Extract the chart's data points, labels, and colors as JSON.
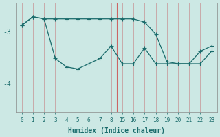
{
  "xlabel": "Humidex (Indice chaleur)",
  "bg_color": "#cce8e4",
  "line_color": "#1a6b6b",
  "grid_color": "#c8a0a0",
  "ylim": [
    -4.55,
    -2.45
  ],
  "yticks": [
    -4,
    -3
  ],
  "xtick_labels": [
    "0",
    "1",
    "2",
    "3",
    "4",
    "5",
    "6",
    "7",
    "8",
    "15",
    "16",
    "17",
    "18",
    "19",
    "20",
    "21",
    "22",
    "23"
  ],
  "line1_pos": [
    0,
    1,
    2,
    3,
    4,
    5,
    6,
    7,
    8,
    9,
    10,
    11,
    12,
    13,
    14,
    15,
    16,
    17
  ],
  "line1_y": [
    -2.88,
    -2.72,
    -2.76,
    -2.76,
    -2.76,
    -2.76,
    -2.76,
    -2.76,
    -2.76,
    -2.76,
    -2.76,
    -2.82,
    -3.05,
    -3.58,
    -3.62,
    -3.62,
    -3.62,
    -3.38
  ],
  "line2_pos": [
    0,
    1,
    2,
    3,
    4,
    5,
    6,
    7,
    8,
    9,
    10,
    11,
    12,
    13,
    14,
    15,
    16,
    17
  ],
  "line2_y": [
    -2.88,
    -2.72,
    -2.76,
    -3.52,
    -3.68,
    -3.72,
    -3.62,
    -3.52,
    -3.28,
    -3.62,
    -3.62,
    -3.32,
    -3.62,
    -3.62,
    -3.62,
    -3.62,
    -3.38,
    -3.28
  ],
  "markersize": 2.5,
  "linewidth": 0.9
}
